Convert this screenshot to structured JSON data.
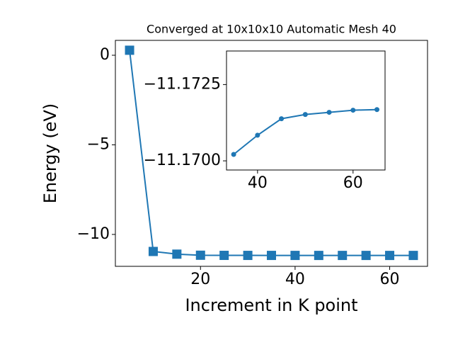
{
  "chart_data": [
    {
      "type": "line",
      "title": "Converged at 10x10x10 Automatic Mesh 40",
      "x_label": "Increment in K point",
      "y_label": "Energy (eV)",
      "x": [
        5,
        10,
        15,
        20,
        25,
        30,
        35,
        40,
        45,
        50,
        55,
        60,
        65
      ],
      "series": [
        {
          "color": "#1f77b4",
          "marker": "square",
          "values": [
            0.28,
            -10.95,
            -11.1,
            -11.16,
            -11.168,
            -11.1695,
            -11.17021,
            -11.17084,
            -11.17138,
            -11.17152,
            -11.17159,
            -11.17166,
            -11.17168
          ]
        }
      ],
      "xlim": [
        2,
        68
      ],
      "ylim": [
        -11.78,
        0.83
      ],
      "xticks": [
        20,
        40,
        60
      ],
      "yticks": [
        {
          "value": 0,
          "label": "0"
        },
        {
          "value": -5,
          "label": "−5"
        },
        {
          "value": -10,
          "label": "−10"
        }
      ]
    },
    {
      "type": "line",
      "x": [
        35,
        40,
        45,
        50,
        55,
        60,
        65
      ],
      "series": [
        {
          "color": "#1f77b4",
          "marker": "circle",
          "values": [
            -11.17021,
            -11.17084,
            -11.17138,
            -11.17152,
            -11.17159,
            -11.17166,
            -11.17168
          ]
        }
      ],
      "xlim": [
        33.5,
        66.7
      ],
      "ylim": [
        -11.1697,
        -11.1736
      ],
      "xticks": [
        40,
        60
      ],
      "yticks": [
        {
          "value": -11.1725,
          "label": "−11.1725"
        },
        {
          "value": -11.17,
          "label": "−11.1700"
        }
      ]
    }
  ]
}
